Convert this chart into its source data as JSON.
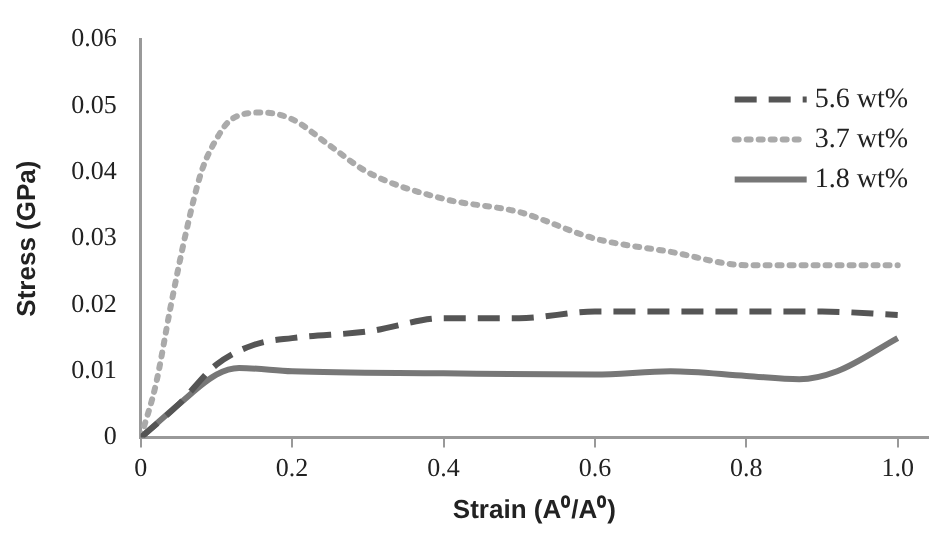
{
  "chart_data": {
    "type": "line",
    "xlabel": "Strain (A⁰/A⁰)",
    "ylabel": "Stress (GPa)",
    "xlim": [
      0,
      1.04
    ],
    "xticks": [
      0,
      0.2,
      0.4,
      0.6,
      0.8,
      {
        "value": 1,
        "label": "1.0"
      }
    ],
    "ylim": [
      0,
      0.06
    ],
    "yticks": [
      0,
      0.01,
      0.02,
      0.03,
      0.04,
      0.05,
      0.06
    ],
    "grid": false,
    "legend": "top right",
    "marker": "none",
    "series": [
      {
        "name": "5.6 wt%",
        "color": "#555555",
        "line_style": "dashed",
        "x": [
          0,
          0.05,
          0.1,
          0.15,
          0.2,
          0.3,
          0.4,
          0.5,
          0.6,
          0.7,
          0.8,
          0.9,
          1.0
        ],
        "values": [
          0,
          0.005,
          0.011,
          0.014,
          0.015,
          0.016,
          0.018,
          0.018,
          0.019,
          0.019,
          0.019,
          0.019,
          0.0185
        ]
      },
      {
        "name": "3.7 wt%",
        "color": "#aaaaaa",
        "line_style": "dotted",
        "x": [
          0,
          0.02,
          0.04,
          0.06,
          0.08,
          0.1,
          0.12,
          0.16,
          0.2,
          0.25,
          0.3,
          0.4,
          0.5,
          0.6,
          0.7,
          0.8,
          0.9,
          1.0
        ],
        "values": [
          0,
          0.008,
          0.02,
          0.031,
          0.04,
          0.045,
          0.048,
          0.049,
          0.048,
          0.044,
          0.04,
          0.036,
          0.034,
          0.03,
          0.028,
          0.026,
          0.026,
          0.026
        ]
      },
      {
        "name": "1.8 wt%",
        "color": "#777777",
        "line_style": "solid",
        "x": [
          0,
          0.05,
          0.1,
          0.13,
          0.2,
          0.4,
          0.6,
          0.7,
          0.8,
          0.87,
          0.92,
          1.0
        ],
        "values": [
          0,
          0.005,
          0.0095,
          0.0105,
          0.01,
          0.0097,
          0.0095,
          0.01,
          0.0093,
          0.0088,
          0.01,
          0.015
        ]
      }
    ]
  }
}
